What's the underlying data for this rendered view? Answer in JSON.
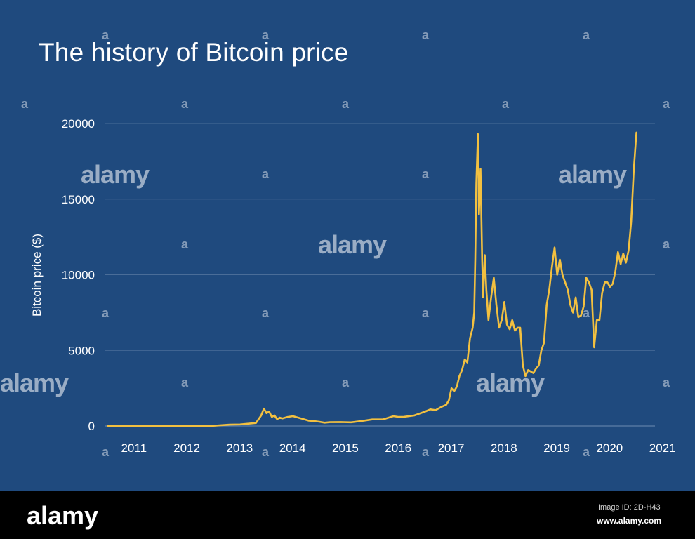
{
  "title": "The history of Bitcoin price",
  "watermark": {
    "logo": "alamy",
    "mark": "a"
  },
  "footer": {
    "logo": "alamy",
    "image_id": "Image ID: 2D-H43",
    "url": "www.alamy.com"
  },
  "colors": {
    "background": "#1f4a7e",
    "line": "#f2c040",
    "grid": "#4a6d98",
    "text": "#ffffff",
    "footer": "#000000"
  },
  "chart_data": {
    "type": "line",
    "title": "The history of Bitcoin price",
    "xlabel": "",
    "ylabel": "Bitcoin price ($)",
    "xlim": [
      2010.95,
      2021.35
    ],
    "ylim": [
      0,
      20000
    ],
    "yticks": [
      0,
      5000,
      10000,
      15000,
      20000
    ],
    "xticks": [
      "2011",
      "2012",
      "2013",
      "2014",
      "2015",
      "2016",
      "2017",
      "2018",
      "2019",
      "2020",
      "2021"
    ],
    "grid": true,
    "series": [
      {
        "x": [
          2011.0,
          2011.5,
          2012.0,
          2012.5,
          2013.0,
          2013.3,
          2013.5,
          2013.8,
          2013.9,
          2013.95,
          2014.0,
          2014.05,
          2014.1,
          2014.15,
          2014.2,
          2014.25,
          2014.3,
          2014.4,
          2014.5,
          2014.6,
          2014.7,
          2014.8,
          2014.9,
          2015.0,
          2015.1,
          2015.2,
          2015.4,
          2015.6,
          2015.8,
          2016.0,
          2016.2,
          2016.4,
          2016.5,
          2016.6,
          2016.8,
          2017.0,
          2017.1,
          2017.2,
          2017.3,
          2017.4,
          2017.45,
          2017.5,
          2017.55,
          2017.6,
          2017.65,
          2017.7,
          2017.75,
          2017.8,
          2017.85,
          2017.9,
          2017.93,
          2017.95,
          2017.97,
          2018.0,
          2018.02,
          2018.05,
          2018.08,
          2018.1,
          2018.13,
          2018.16,
          2018.2,
          2018.25,
          2018.3,
          2018.35,
          2018.4,
          2018.45,
          2018.5,
          2018.55,
          2018.6,
          2018.65,
          2018.7,
          2018.75,
          2018.8,
          2018.85,
          2018.9,
          2018.95,
          2019.0,
          2019.05,
          2019.1,
          2019.15,
          2019.2,
          2019.25,
          2019.3,
          2019.35,
          2019.4,
          2019.45,
          2019.5,
          2019.55,
          2019.6,
          2019.65,
          2019.7,
          2019.75,
          2019.8,
          2019.85,
          2019.9,
          2019.95,
          2020.0,
          2020.05,
          2020.1,
          2020.15,
          2020.2,
          2020.25,
          2020.3,
          2020.35,
          2020.4,
          2020.45,
          2020.5,
          2020.55,
          2020.6,
          2020.65,
          2020.7,
          2020.75,
          2020.8,
          2020.85,
          2020.9,
          2020.95,
          2021.0
        ],
        "y": [
          0,
          10,
          5,
          7,
          13,
          90,
          100,
          200,
          700,
          1150,
          850,
          950,
          600,
          700,
          450,
          550,
          500,
          600,
          650,
          550,
          450,
          350,
          320,
          280,
          220,
          250,
          260,
          240,
          330,
          430,
          430,
          650,
          600,
          610,
          700,
          950,
          1100,
          1050,
          1250,
          1400,
          1700,
          2500,
          2300,
          2600,
          3300,
          3700,
          4400,
          4200,
          5800,
          6500,
          7500,
          11000,
          16000,
          19300,
          14000,
          17000,
          11000,
          8500,
          11300,
          9000,
          7000,
          8500,
          9800,
          8000,
          6500,
          7000,
          8200,
          6700,
          6400,
          7000,
          6300,
          6500,
          6500,
          4000,
          3300,
          3700,
          3600,
          3500,
          3800,
          4000,
          5000,
          5500,
          8000,
          9000,
          10500,
          11800,
          10000,
          11000,
          10000,
          9500,
          9000,
          8000,
          7500,
          8500,
          7200,
          7300,
          7900,
          9800,
          9500,
          9000,
          5200,
          7000,
          7000,
          8800,
          9500,
          9500,
          9200,
          9400,
          10200,
          11500,
          10700,
          11400,
          10800,
          11600,
          13500,
          17000,
          19400
        ]
      }
    ]
  }
}
